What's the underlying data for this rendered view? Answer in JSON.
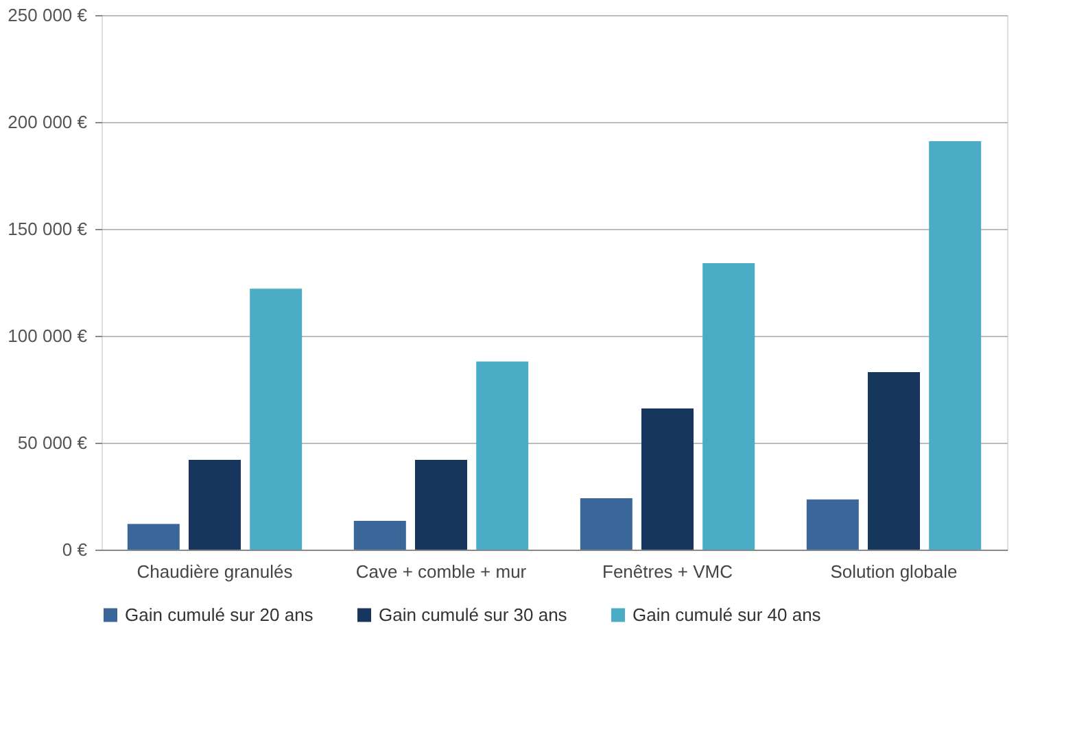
{
  "chart_data": {
    "type": "bar",
    "categories": [
      "Chaudière granulés",
      "Cave + comble + mur",
      "Fenêtres + VMC",
      "Solution globale"
    ],
    "series": [
      {
        "name": "Gain cumulé sur 20 ans",
        "color": "#3a6699",
        "values": [
          12000,
          13500,
          24000,
          23500
        ]
      },
      {
        "name": "Gain cumulé sur 30 ans",
        "color": "#17365d",
        "values": [
          42000,
          42000,
          66000,
          83000
        ]
      },
      {
        "name": "Gain cumulé sur 40 ans",
        "color": "#4bacc6",
        "values": [
          122000,
          88000,
          134000,
          191000
        ]
      }
    ],
    "ylim": [
      0,
      250000
    ],
    "yticks": [
      {
        "value": 0,
        "label": "0 €"
      },
      {
        "value": 50000,
        "label": "50 000 €"
      },
      {
        "value": 100000,
        "label": "100 000 €"
      },
      {
        "value": 150000,
        "label": "150 000 €"
      },
      {
        "value": 200000,
        "label": "200 000 €"
      },
      {
        "value": 250000,
        "label": "250 000 €"
      }
    ],
    "grid": "y",
    "legend": "bottom"
  }
}
